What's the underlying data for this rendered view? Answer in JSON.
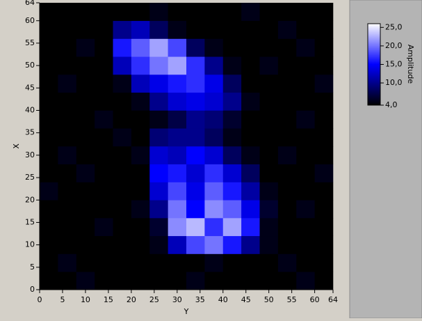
{
  "chart_data": {
    "type": "heatmap",
    "xlabel": "Y",
    "ylabel": "X",
    "colorbar_label": "Amplitude",
    "xlim": [
      0,
      64
    ],
    "ylim": [
      0,
      64
    ],
    "xticks": [
      0,
      5,
      10,
      15,
      20,
      25,
      30,
      35,
      40,
      45,
      50,
      55,
      60,
      64
    ],
    "yticks": [
      0,
      5,
      10,
      15,
      20,
      25,
      30,
      35,
      40,
      45,
      50,
      55,
      60,
      64
    ],
    "clim": [
      4,
      26
    ],
    "cticks": [
      {
        "value": 4,
        "label": "4,0"
      },
      {
        "value": 10,
        "label": "10,0"
      },
      {
        "value": 15,
        "label": "15,0"
      },
      {
        "value": 20,
        "label": "20,0"
      },
      {
        "value": 25,
        "label": "25,0"
      }
    ],
    "colormap": [
      "#000000",
      "#0000ff",
      "#ffffff"
    ],
    "z": [
      [
        4,
        4,
        5,
        4,
        4,
        4,
        4,
        4,
        5,
        4,
        4,
        4,
        4,
        4,
        5,
        4
      ],
      [
        4,
        5,
        4,
        4,
        4,
        4,
        4,
        4,
        4,
        5,
        4,
        4,
        4,
        5,
        4,
        4
      ],
      [
        4,
        4,
        4,
        4,
        4,
        4,
        5,
        12,
        18,
        20,
        16,
        10,
        5,
        4,
        4,
        4
      ],
      [
        4,
        4,
        4,
        5,
        4,
        4,
        6,
        21,
        23,
        17,
        22,
        16,
        5,
        4,
        4,
        4
      ],
      [
        4,
        4,
        4,
        4,
        4,
        5,
        10,
        20,
        15,
        21,
        19,
        14,
        6,
        4,
        5,
        4
      ],
      [
        5,
        4,
        4,
        4,
        4,
        4,
        13,
        18,
        14,
        19,
        16,
        11,
        5,
        4,
        4,
        4
      ],
      [
        4,
        4,
        5,
        4,
        4,
        4,
        15,
        16,
        13,
        17,
        13,
        8,
        4,
        4,
        4,
        5
      ],
      [
        4,
        5,
        4,
        4,
        4,
        5,
        13,
        12,
        15,
        13,
        8,
        5,
        4,
        5,
        4,
        4
      ],
      [
        4,
        4,
        4,
        4,
        5,
        4,
        9,
        10,
        10,
        8,
        5,
        4,
        4,
        4,
        4,
        4
      ],
      [
        4,
        4,
        4,
        5,
        4,
        4,
        5,
        7,
        10,
        9,
        6,
        4,
        4,
        4,
        5,
        4
      ],
      [
        4,
        4,
        4,
        4,
        4,
        5,
        10,
        13,
        14,
        13,
        10,
        5,
        4,
        4,
        4,
        4
      ],
      [
        4,
        5,
        4,
        4,
        5,
        12,
        14,
        16,
        17,
        14,
        8,
        4,
        4,
        4,
        4,
        5
      ],
      [
        4,
        4,
        4,
        4,
        12,
        17,
        20,
        22,
        17,
        10,
        5,
        4,
        5,
        4,
        4,
        4
      ],
      [
        4,
        4,
        5,
        4,
        16,
        19,
        22,
        18,
        8,
        5,
        4,
        4,
        4,
        4,
        5,
        4
      ],
      [
        4,
        4,
        4,
        4,
        10,
        12,
        8,
        5,
        4,
        4,
        4,
        4,
        4,
        5,
        4,
        4
      ],
      [
        4,
        4,
        4,
        4,
        4,
        4,
        5,
        4,
        4,
        4,
        4,
        5,
        4,
        4,
        4,
        4
      ]
    ]
  }
}
